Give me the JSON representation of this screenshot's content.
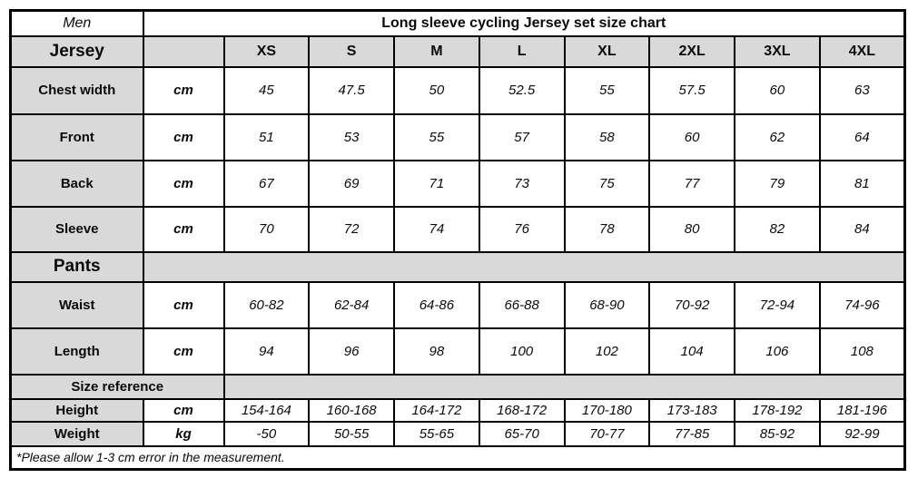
{
  "header": {
    "men_label": "Men",
    "title": "Long sleeve cycling Jersey set size chart"
  },
  "sizes": [
    "XS",
    "S",
    "M",
    "L",
    "XL",
    "2XL",
    "3XL",
    "4XL"
  ],
  "jersey": {
    "section_label": "Jersey",
    "rows": [
      {
        "label": "Chest width",
        "unit": "cm",
        "values": [
          "45",
          "47.5",
          "50",
          "52.5",
          "55",
          "57.5",
          "60",
          "63"
        ]
      },
      {
        "label": "Front",
        "unit": "cm",
        "values": [
          "51",
          "53",
          "55",
          "57",
          "58",
          "60",
          "62",
          "64"
        ]
      },
      {
        "label": "Back",
        "unit": "cm",
        "values": [
          "67",
          "69",
          "71",
          "73",
          "75",
          "77",
          "79",
          "81"
        ]
      },
      {
        "label": "Sleeve",
        "unit": "cm",
        "values": [
          "70",
          "72",
          "74",
          "76",
          "78",
          "80",
          "82",
          "84"
        ]
      }
    ]
  },
  "pants": {
    "section_label": "Pants",
    "rows": [
      {
        "label": "Waist",
        "unit": "cm",
        "values": [
          "60-82",
          "62-84",
          "64-86",
          "66-88",
          "68-90",
          "70-92",
          "72-94",
          "74-96"
        ]
      },
      {
        "label": "Length",
        "unit": "cm",
        "values": [
          "94",
          "96",
          "98",
          "100",
          "102",
          "104",
          "106",
          "108"
        ]
      }
    ]
  },
  "size_reference": {
    "section_label": "Size reference",
    "rows": [
      {
        "label": "Height",
        "unit": "cm",
        "values": [
          "154-164",
          "160-168",
          "164-172",
          "168-172",
          "170-180",
          "173-183",
          "178-192",
          "181-196"
        ]
      },
      {
        "label": "Weight",
        "unit": "kg",
        "values": [
          "-50",
          "50-55",
          "55-65",
          "65-70",
          "70-77",
          "77-85",
          "85-92",
          "92-99"
        ]
      }
    ]
  },
  "footnote": "*Please allow 1-3 cm error in the measurement.",
  "colors": {
    "cell_gray": "#d9d9d9",
    "border": "#000000",
    "background": "#ffffff"
  }
}
